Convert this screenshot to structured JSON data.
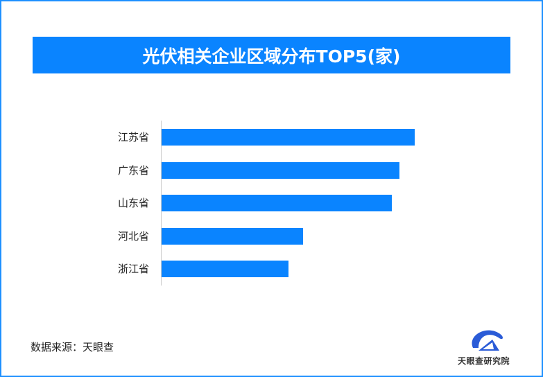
{
  "title": "光伏相关企业区域分布TOP5(家)",
  "source": "数据来源：天眼查",
  "logo_text": "天眼查研究院",
  "colors": {
    "bar": "#0a84ff",
    "title_bg": "#0a84ff",
    "border": "#1e90ff"
  },
  "chart_data": {
    "type": "bar",
    "orientation": "horizontal",
    "title": "光伏相关企业区域分布TOP5(家)",
    "categories": [
      "江苏省",
      "广东省",
      "山东省",
      "河北省",
      "浙江省"
    ],
    "values": [
      1.0,
      0.94,
      0.91,
      0.56,
      0.5
    ],
    "value_note": "relative to max (no values printed)",
    "grid": false
  }
}
